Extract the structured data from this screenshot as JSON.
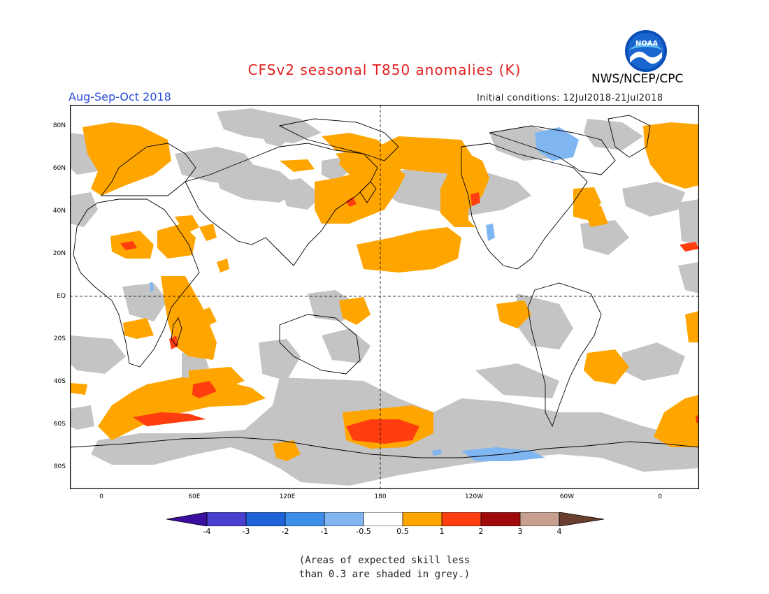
{
  "title": "CFSv2 seasonal T850 anomalies (K)",
  "org": "NWS/NCEP/CPC",
  "logo_text": "NOAA",
  "period": "Aug-Sep-Oct 2018",
  "init_conditions": "Initial conditions: 12Jul2018-21Jul2018",
  "lat_labels": [
    "80N",
    "60N",
    "40N",
    "20N",
    "EQ",
    "20S",
    "40S",
    "60S",
    "80S"
  ],
  "lon_labels": [
    "0",
    "60E",
    "120E",
    "180",
    "120W",
    "60W",
    "0"
  ],
  "colorbar": {
    "labels": [
      "-4",
      "-3",
      "-2",
      "-1",
      "-0.5",
      "0.5",
      "1",
      "2",
      "3",
      "4"
    ],
    "colors": [
      "#3a0fa0",
      "#4b3fd0",
      "#1f63d8",
      "#3d8ee8",
      "#7fb6f2",
      "#ffffff",
      "#ffa500",
      "#ff3e10",
      "#a00a0a",
      "#c8a090",
      "#6b3f2f"
    ]
  },
  "note_line1": "(Areas of expected skill less",
  "note_line2": "than 0.3 are shaded in grey.)",
  "colors": {
    "grey": "#c4c4c4",
    "orange": "#ffa500",
    "red": "#ff3e10",
    "lightblue": "#7fb6f2",
    "blue": "#3d8ee8"
  }
}
